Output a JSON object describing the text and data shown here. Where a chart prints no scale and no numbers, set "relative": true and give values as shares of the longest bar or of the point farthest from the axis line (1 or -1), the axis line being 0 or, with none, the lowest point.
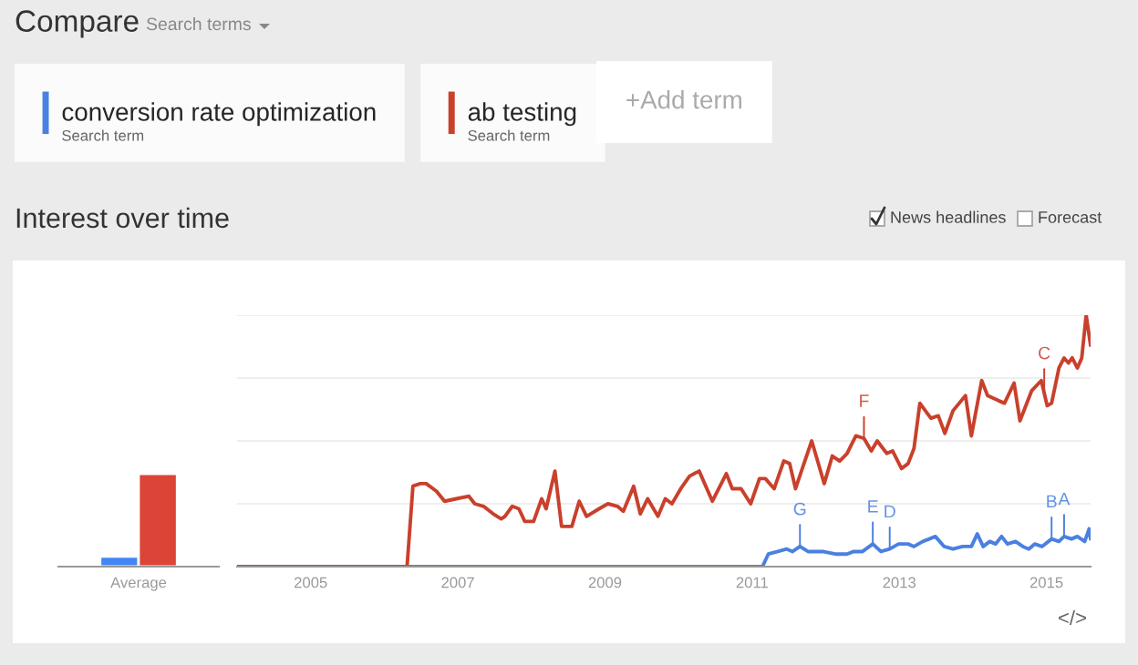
{
  "chart_data": [
    {
      "type": "bar",
      "categories": [
        "Average"
      ],
      "relative": true,
      "series": [
        {
          "color": "#4285f4",
          "values": [
            0.11
          ]
        },
        {
          "color": "#db4437",
          "values": [
            1
          ]
        }
      ]
    },
    {
      "type": "line",
      "relative": true,
      "title": "Interest over time",
      "grid": "y",
      "legend": "top",
      "xlim": [
        2004,
        2015.6
      ],
      "xticks": [
        2005,
        2007,
        2009,
        2011,
        2013,
        2015
      ],
      "annotations": [
        "Compare",
        "Search terms",
        "Search term",
        "Search term",
        "+Add term",
        "News headlines",
        "Forecast",
        "</>",
        {
          "text": "G",
          "x": 2011.65,
          "y": 0.08
        },
        {
          "text": "E",
          "x": 2012.64,
          "y": 0.09
        },
        {
          "text": "D",
          "x": 2012.87,
          "y": 0.07
        },
        {
          "text": "B",
          "x": 2015.07,
          "y": 0.11
        },
        {
          "text": "A",
          "x": 2015.24,
          "y": 0.12
        },
        {
          "text": "F",
          "x": 2012.52,
          "y": 0.51
        },
        {
          "text": "C",
          "x": 2014.97,
          "y": 0.7
        }
      ],
      "series": [
        {
          "name": "conversion rate optimization",
          "color": "#4a80e0",
          "x": [
            2004,
            2011.14,
            2011.22,
            2011.35,
            2011.47,
            2011.55,
            2011.65,
            2011.76,
            2011.96,
            2012.13,
            2012.29,
            2012.38,
            2012.5,
            2012.64,
            2012.75,
            2012.87,
            2012.99,
            2013.12,
            2013.2,
            2013.32,
            2013.49,
            2013.61,
            2013.73,
            2013.86,
            2013.98,
            2014.06,
            2014.14,
            2014.23,
            2014.31,
            2014.39,
            2014.47,
            2014.58,
            2014.68,
            2014.76,
            2014.84,
            2014.94,
            2015.07,
            2015.17,
            2015.24,
            2015.34,
            2015.42,
            2015.52,
            2015.58,
            2015.6
          ],
          "values": [
            0,
            0,
            0.05,
            0.06,
            0.07,
            0.06,
            0.08,
            0.06,
            0.06,
            0.05,
            0.05,
            0.06,
            0.06,
            0.09,
            0.06,
            0.07,
            0.09,
            0.09,
            0.08,
            0.1,
            0.12,
            0.08,
            0.07,
            0.08,
            0.08,
            0.13,
            0.08,
            0.1,
            0.09,
            0.12,
            0.09,
            0.1,
            0.08,
            0.07,
            0.09,
            0.08,
            0.11,
            0.1,
            0.12,
            0.11,
            0.12,
            0.1,
            0.15,
            0.11
          ]
        },
        {
          "name": "ab testing",
          "color": "#c9402c",
          "x": [
            2004,
            2006.31,
            2006.39,
            2006.49,
            2006.57,
            2006.71,
            2006.82,
            2006.98,
            2007.15,
            2007.23,
            2007.35,
            2007.48,
            2007.59,
            2007.64,
            2007.74,
            2007.83,
            2007.91,
            2008.03,
            2008.14,
            2008.2,
            2008.32,
            2008.41,
            2008.55,
            2008.65,
            2008.75,
            2008.92,
            2009.04,
            2009.17,
            2009.25,
            2009.39,
            2009.48,
            2009.58,
            2009.72,
            2009.82,
            2009.91,
            2010.03,
            2010.15,
            2010.28,
            2010.46,
            2010.65,
            2010.73,
            2010.85,
            2010.98,
            2011.1,
            2011.18,
            2011.3,
            2011.43,
            2011.51,
            2011.59,
            2011.67,
            2011.81,
            2011.98,
            2012.09,
            2012.19,
            2012.29,
            2012.41,
            2012.52,
            2012.62,
            2012.7,
            2012.83,
            2012.91,
            2013.03,
            2013.12,
            2013.2,
            2013.28,
            2013.43,
            2013.53,
            2013.62,
            2013.73,
            2013.9,
            2013.98,
            2014.12,
            2014.2,
            2014.35,
            2014.43,
            2014.56,
            2014.64,
            2014.8,
            2014.93,
            2015.01,
            2015.07,
            2015.17,
            2015.24,
            2015.3,
            2015.35,
            2015.42,
            2015.48,
            2015.54,
            2015.6
          ],
          "values": [
            0,
            0,
            0.32,
            0.33,
            0.33,
            0.3,
            0.26,
            0.27,
            0.28,
            0.25,
            0.24,
            0.21,
            0.19,
            0.2,
            0.24,
            0.23,
            0.18,
            0.18,
            0.27,
            0.23,
            0.38,
            0.16,
            0.16,
            0.26,
            0.2,
            0.23,
            0.25,
            0.24,
            0.22,
            0.32,
            0.21,
            0.27,
            0.2,
            0.27,
            0.25,
            0.31,
            0.36,
            0.38,
            0.26,
            0.37,
            0.31,
            0.31,
            0.25,
            0.35,
            0.35,
            0.31,
            0.42,
            0.41,
            0.31,
            0.38,
            0.5,
            0.33,
            0.44,
            0.42,
            0.45,
            0.52,
            0.51,
            0.46,
            0.5,
            0.45,
            0.46,
            0.39,
            0.41,
            0.47,
            0.65,
            0.59,
            0.6,
            0.53,
            0.62,
            0.68,
            0.52,
            0.74,
            0.68,
            0.66,
            0.65,
            0.73,
            0.58,
            0.7,
            0.74,
            0.64,
            0.65,
            0.79,
            0.83,
            0.81,
            0.83,
            0.79,
            0.83,
            1,
            0.88
          ]
        }
      ]
    }
  ]
}
